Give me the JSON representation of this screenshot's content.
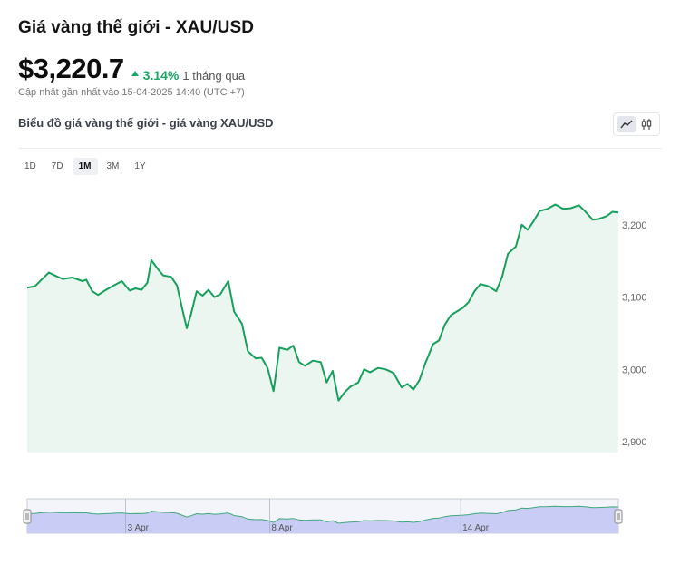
{
  "header": {
    "title": "Giá vàng thế giới - XAU/USD",
    "price": "$3,220.7",
    "change_pct": "3.14%",
    "change_period": "1 tháng qua",
    "updated": "Cập nhật gần nhất vào 15-04-2025 14:40 (UTC +7)",
    "subtitle": "Biểu đồ giá vàng thế giới - giá vàng XAU/USD"
  },
  "ranges": [
    {
      "label": "1D",
      "active": false
    },
    {
      "label": "7D",
      "active": false
    },
    {
      "label": "1M",
      "active": true
    },
    {
      "label": "3M",
      "active": false
    },
    {
      "label": "1Y",
      "active": false
    }
  ],
  "colors": {
    "line": "#16a05c",
    "fill": "#eaf6ef",
    "up": "#1aa867",
    "navigator_fill": "#c9cdf5",
    "navigator_line": "#3fa878"
  },
  "chart_data": {
    "type": "area",
    "title": "",
    "xlabel": "",
    "ylabel": "",
    "ylim": [
      2885,
      3260
    ],
    "yticks": [
      2900,
      3000,
      3100,
      3200
    ],
    "ytick_labels": [
      "2,900",
      "3,000",
      "3,100",
      "3,200"
    ],
    "axis_side": "right",
    "grid": false,
    "x_range": [
      0,
      30
    ],
    "navigator_ticks": [
      {
        "x": 5.0,
        "label": "3 Apr"
      },
      {
        "x": 12.3,
        "label": "8 Apr"
      },
      {
        "x": 22.0,
        "label": "14 Apr"
      }
    ],
    "series": [
      {
        "values": [
          [
            0.0,
            3113
          ],
          [
            0.4,
            3115
          ],
          [
            0.8,
            3126
          ],
          [
            1.1,
            3134
          ],
          [
            1.4,
            3130
          ],
          [
            1.8,
            3125
          ],
          [
            2.3,
            3127
          ],
          [
            2.8,
            3122
          ],
          [
            3.0,
            3124
          ],
          [
            3.3,
            3108
          ],
          [
            3.6,
            3103
          ],
          [
            4.0,
            3110
          ],
          [
            4.4,
            3116
          ],
          [
            4.8,
            3122
          ],
          [
            5.2,
            3109
          ],
          [
            5.5,
            3112
          ],
          [
            5.8,
            3110
          ],
          [
            6.1,
            3120
          ],
          [
            6.3,
            3151
          ],
          [
            6.6,
            3140
          ],
          [
            6.9,
            3130
          ],
          [
            7.3,
            3128
          ],
          [
            7.6,
            3116
          ],
          [
            7.9,
            3080
          ],
          [
            8.1,
            3057
          ],
          [
            8.3,
            3075
          ],
          [
            8.6,
            3108
          ],
          [
            8.9,
            3102
          ],
          [
            9.2,
            3110
          ],
          [
            9.5,
            3100
          ],
          [
            9.8,
            3104
          ],
          [
            10.2,
            3122
          ],
          [
            10.5,
            3080
          ],
          [
            10.9,
            3063
          ],
          [
            11.2,
            3025
          ],
          [
            11.6,
            3015
          ],
          [
            11.9,
            3016
          ],
          [
            12.2,
            3002
          ],
          [
            12.5,
            2970
          ],
          [
            12.8,
            3030
          ],
          [
            13.2,
            3027
          ],
          [
            13.5,
            3033
          ],
          [
            13.8,
            3010
          ],
          [
            14.1,
            3005
          ],
          [
            14.5,
            3012
          ],
          [
            14.9,
            3010
          ],
          [
            15.2,
            2982
          ],
          [
            15.5,
            2998
          ],
          [
            15.8,
            2957
          ],
          [
            16.1,
            2968
          ],
          [
            16.4,
            2976
          ],
          [
            16.8,
            2982
          ],
          [
            17.1,
            3000
          ],
          [
            17.4,
            2996
          ],
          [
            17.8,
            3002
          ],
          [
            18.2,
            3000
          ],
          [
            18.6,
            2995
          ],
          [
            19.0,
            2975
          ],
          [
            19.3,
            2980
          ],
          [
            19.6,
            2972
          ],
          [
            19.9,
            2985
          ],
          [
            20.2,
            3008
          ],
          [
            20.6,
            3035
          ],
          [
            20.9,
            3040
          ],
          [
            21.2,
            3062
          ],
          [
            21.5,
            3075
          ],
          [
            21.8,
            3080
          ],
          [
            22.1,
            3085
          ],
          [
            22.4,
            3093
          ],
          [
            22.7,
            3108
          ],
          [
            23.0,
            3118
          ],
          [
            23.4,
            3115
          ],
          [
            23.8,
            3108
          ],
          [
            24.1,
            3128
          ],
          [
            24.4,
            3160
          ],
          [
            24.8,
            3170
          ],
          [
            25.1,
            3200
          ],
          [
            25.4,
            3193
          ],
          [
            25.7,
            3205
          ],
          [
            26.0,
            3219
          ],
          [
            26.4,
            3222
          ],
          [
            26.8,
            3228
          ],
          [
            27.2,
            3222
          ],
          [
            27.6,
            3223
          ],
          [
            28.0,
            3227
          ],
          [
            28.3,
            3219
          ],
          [
            28.7,
            3207
          ],
          [
            29.0,
            3208
          ],
          [
            29.4,
            3212
          ],
          [
            29.7,
            3218
          ],
          [
            30.0,
            3217
          ]
        ]
      }
    ]
  }
}
